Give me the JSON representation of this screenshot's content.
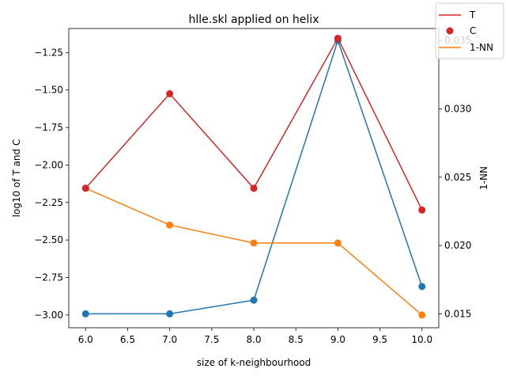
{
  "chart_data": {
    "type": "line",
    "title": "hlle.skl applied on helix",
    "xlabel": "size of k-neighbourhood",
    "ylabel_left": "log10 of T and C",
    "ylabel_right": "1-NN",
    "x": [
      6,
      7,
      8,
      9,
      10
    ],
    "xlim": [
      5.8,
      10.2
    ],
    "ylim_left": [
      -3.085,
      -1.09
    ],
    "ylim_right": [
      0.01398,
      0.03588
    ],
    "x_ticks": [
      "6.0",
      "6.5",
      "7.0",
      "7.5",
      "8.0",
      "8.5",
      "9.0",
      "9.5",
      "10.0"
    ],
    "y_left_ticks": [
      "-1.25",
      "-1.50",
      "-1.75",
      "-2.00",
      "-2.25",
      "-2.50",
      "-2.75",
      "-3.00"
    ],
    "y_right_ticks": [
      "0.015",
      "0.020",
      "0.025",
      "0.030",
      "0.035"
    ],
    "series": [
      {
        "name": "T",
        "axis": "left",
        "color": "#d62728",
        "style": "line",
        "values": [
          -2.155,
          -1.525,
          -2.155,
          -1.155,
          -2.3
        ]
      },
      {
        "name": "C",
        "axis": "left",
        "color": "#d62728",
        "style": "scatter",
        "values": [
          -2.155,
          -1.525,
          -2.155,
          -1.155,
          -2.3
        ]
      },
      {
        "name": "1-NN",
        "axis": "left",
        "color": "#ff7f0e",
        "style": "line+markers",
        "values": [
          -2.155,
          -2.4,
          -2.52,
          -2.52,
          -3.0
        ]
      },
      {
        "axis": "right",
        "color": "#1f77b4",
        "style": "line+markers",
        "values": [
          0.015,
          0.015,
          0.016,
          0.035,
          0.017
        ]
      }
    ],
    "legend_position": "top-right",
    "grid": false
  }
}
